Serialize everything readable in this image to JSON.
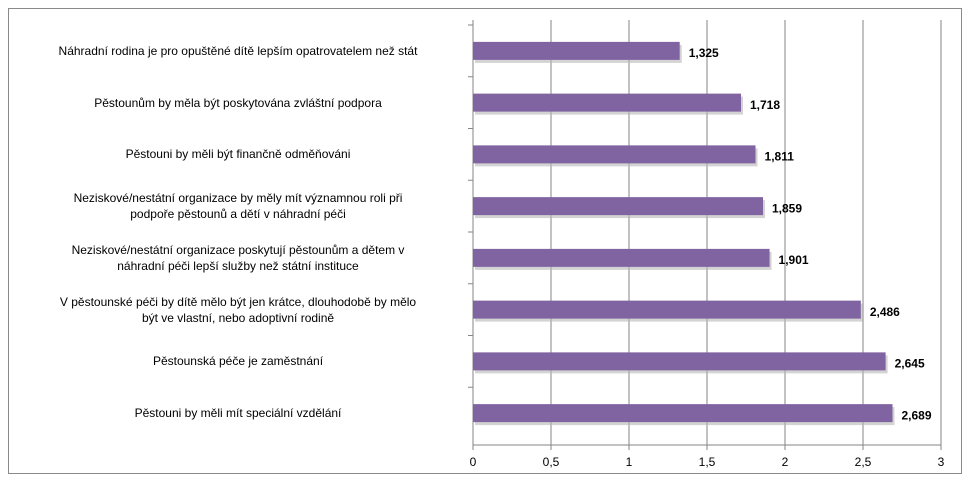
{
  "chart_data": {
    "type": "barh",
    "categories": [
      "Náhradní rodina je pro opuštěné dítě lepším opatrovatelem než stát",
      "Pěstounům by měla být poskytována zvláštní podpora",
      "Pěstouni by měli být finančně odměňováni",
      "Neziskové/nestátní organizace by měly mít významnou roli při\npodpoře pěstounů a dětí v náhradní péči",
      "Neziskové/nestátní organizace poskytují pěstounům a dětem v\nnáhradní péči lepší služby než státní instituce",
      "V pěstounské péči by dítě mělo být jen krátce, dlouhodobě by mělo\nbýt ve vlastní, nebo adoptivní rodině",
      "Pěstounská péče je zaměstnání",
      "Pěstouni by měli mít speciální vzdělání"
    ],
    "values": [
      1.325,
      1.718,
      1.811,
      1.859,
      1.901,
      2.486,
      2.645,
      2.689
    ],
    "value_labels": [
      "1,325",
      "1,718",
      "1,811",
      "1,859",
      "1,901",
      "2,486",
      "2,645",
      "2,689"
    ],
    "color": "#8064a2",
    "xlim": [
      0,
      3
    ],
    "xticks": [
      0,
      {
        "value": 0.5,
        "label": "0,5"
      },
      1,
      {
        "value": 1.5,
        "label": "1,5"
      },
      2,
      {
        "value": 2.5,
        "label": "2,5"
      },
      3
    ],
    "grid": true
  }
}
